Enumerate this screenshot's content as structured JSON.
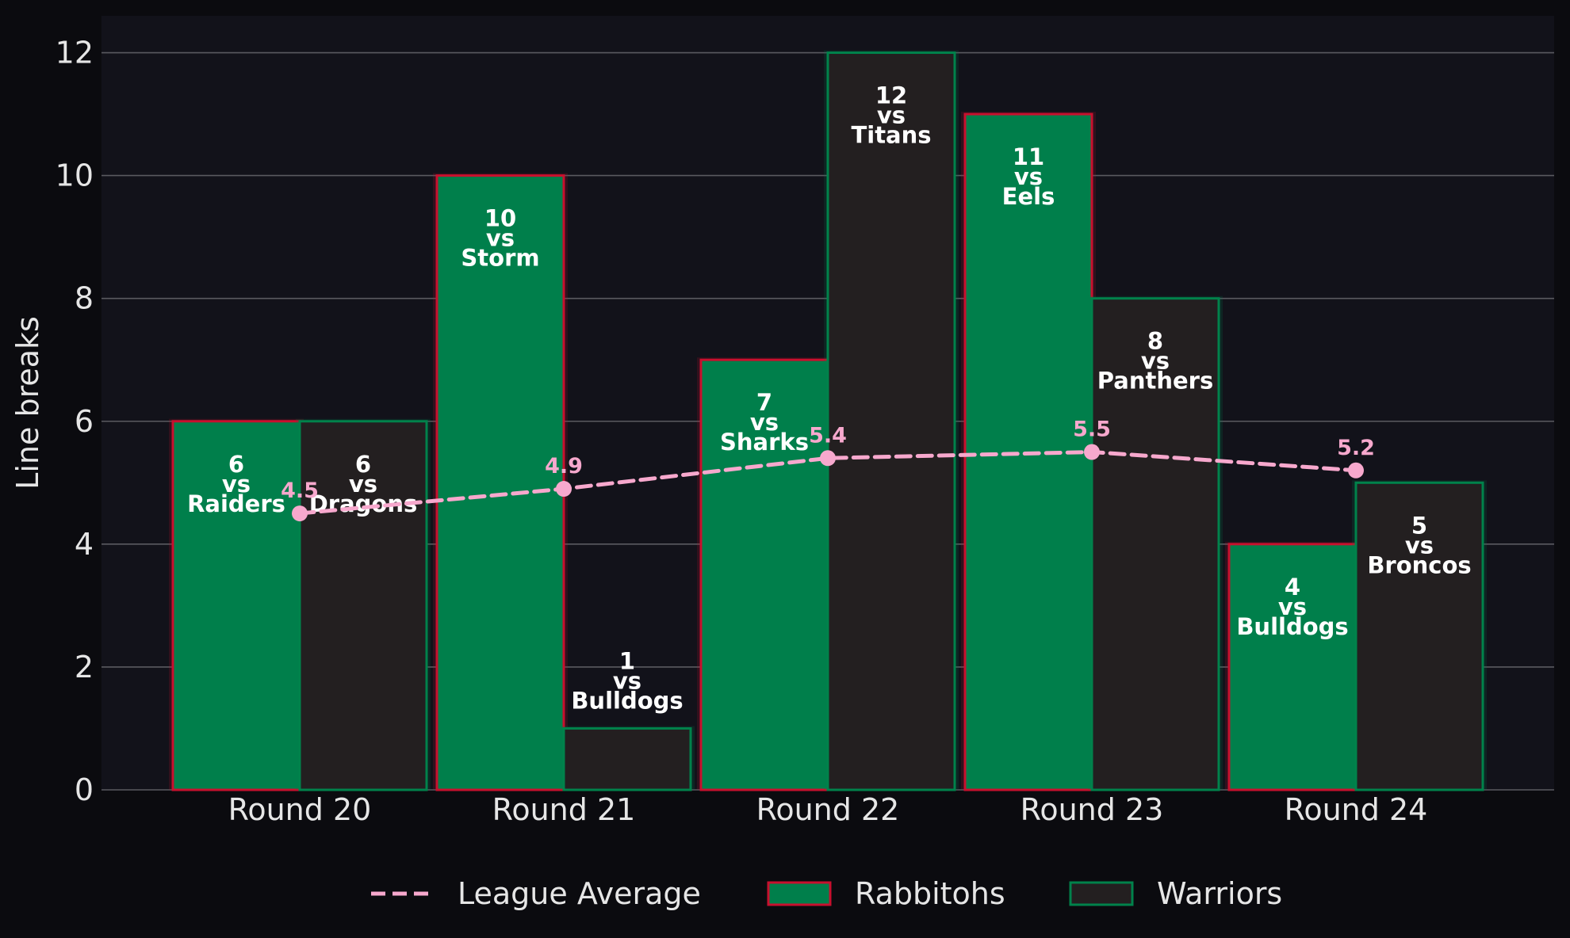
{
  "chart_data": {
    "type": "bar",
    "categories": [
      "Round 20",
      "Round 21",
      "Round 22",
      "Round 23",
      "Round 24"
    ],
    "series": [
      {
        "name": "Rabbitohs",
        "values": [
          6,
          10,
          7,
          11,
          4
        ],
        "opponents": [
          "Raiders",
          "Storm",
          "Sharks",
          "Eels",
          "Bulldogs"
        ],
        "fill": "#007f4b",
        "stroke": "#c8102e"
      },
      {
        "name": "Warriors",
        "values": [
          6,
          1,
          12,
          8,
          5
        ],
        "opponents": [
          "Dragons",
          "Bulldogs",
          "Titans",
          "Panthers",
          "Broncos"
        ],
        "fill": "#231f20",
        "stroke": "#00824b"
      }
    ],
    "line_series": {
      "name": "League Average",
      "type": "line",
      "style": "dashed",
      "values": [
        4.5,
        4.9,
        5.4,
        5.5,
        5.2
      ],
      "color": "#f7a8cd"
    },
    "vs_text": "vs",
    "xlabel": "",
    "ylabel": "Line breaks",
    "ylim": [
      0,
      12.6
    ],
    "yticks": [
      0,
      2,
      4,
      6,
      8,
      10,
      12
    ],
    "grid": true,
    "legend_position": "bottom-center",
    "colors": {
      "page_background": "#0b0b0f",
      "plot_background": "#12121a",
      "grid": "#5a5a60",
      "text": "#e6e6e6"
    }
  }
}
